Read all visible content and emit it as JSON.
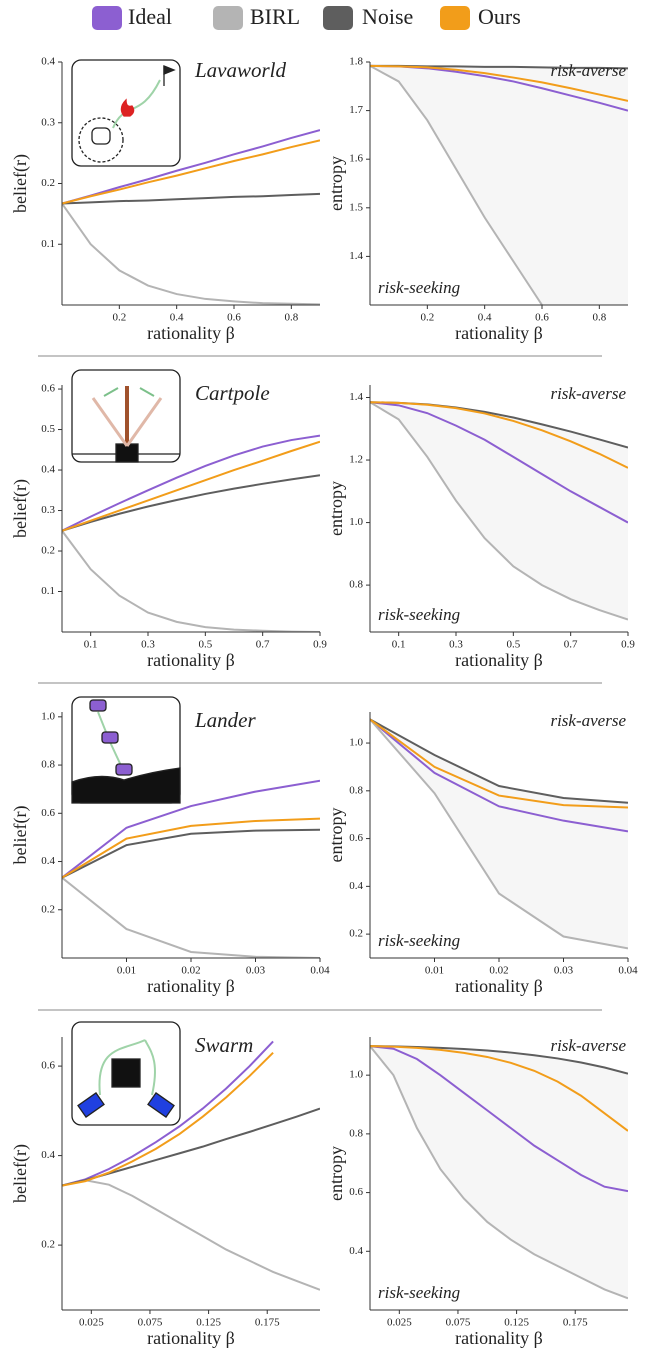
{
  "legend": [
    {
      "name": "Ideal",
      "color": "#8c5fd1"
    },
    {
      "name": "BIRL",
      "color": "#b4b4b4"
    },
    {
      "name": "Noise",
      "color": "#5e5e5e"
    },
    {
      "name": "Ours",
      "color": "#f29d1a"
    }
  ],
  "chart_data": [
    {
      "type": "line",
      "title": "Lavaworld",
      "xlabel": "rationality β",
      "ylabel": "belief(r)",
      "x": [
        0,
        0.1,
        0.2,
        0.3,
        0.4,
        0.5,
        0.6,
        0.7,
        0.8,
        0.9
      ],
      "xlim": [
        0,
        0.9
      ],
      "xticks": [
        0.2,
        0.4,
        0.6,
        0.8
      ],
      "ylim": [
        0,
        0.4
      ],
      "yticks": [
        0.1,
        0.2,
        0.3,
        0.4
      ],
      "series": [
        {
          "values": [
            0.167,
            0.18,
            0.194,
            0.207,
            0.221,
            0.234,
            0.248,
            0.261,
            0.275,
            0.288
          ]
        },
        {
          "values": [
            0.167,
            0.1,
            0.057,
            0.032,
            0.018,
            0.01,
            0.006,
            0.003,
            0.002,
            0.001
          ]
        },
        {
          "values": [
            0.167,
            0.169,
            0.171,
            0.172,
            0.174,
            0.176,
            0.178,
            0.179,
            0.181,
            0.183
          ]
        },
        {
          "values": [
            0.167,
            0.179,
            0.19,
            0.202,
            0.213,
            0.225,
            0.237,
            0.248,
            0.26,
            0.271
          ]
        }
      ]
    },
    {
      "type": "line",
      "annotations": [
        "risk-averse",
        "risk-seeking"
      ],
      "shade": true,
      "xlabel": "rationality β",
      "ylabel": "entropy",
      "x": [
        0,
        0.1,
        0.2,
        0.3,
        0.4,
        0.5,
        0.6,
        0.7,
        0.8,
        0.9
      ],
      "xlim": [
        0,
        0.9
      ],
      "xticks": [
        0.2,
        0.4,
        0.6,
        0.8
      ],
      "ylim": [
        1.3,
        1.8
      ],
      "yticks": [
        1.4,
        1.5,
        1.6,
        1.7,
        1.8
      ],
      "series": [
        {
          "values": [
            1.792,
            1.791,
            1.787,
            1.78,
            1.771,
            1.76,
            1.746,
            1.731,
            1.716,
            1.7
          ]
        },
        {
          "values": [
            1.792,
            1.76,
            1.68,
            1.58,
            1.48,
            1.39,
            1.3,
            null,
            null,
            null
          ]
        },
        {
          "values": [
            1.792,
            1.792,
            1.791,
            1.791,
            1.79,
            1.79,
            1.789,
            1.788,
            1.788,
            1.787
          ]
        },
        {
          "values": [
            1.792,
            1.791,
            1.789,
            1.784,
            1.777,
            1.768,
            1.758,
            1.746,
            1.733,
            1.72
          ]
        }
      ]
    },
    {
      "type": "line",
      "title": "Cartpole",
      "xlabel": "rationality β",
      "ylabel": "belief(r)",
      "x": [
        0,
        0.1,
        0.2,
        0.3,
        0.4,
        0.5,
        0.6,
        0.7,
        0.8,
        0.9
      ],
      "xlim": [
        0,
        0.9
      ],
      "xticks": [
        0.1,
        0.3,
        0.5,
        0.7,
        0.9
      ],
      "ylim": [
        0,
        0.61
      ],
      "yticks": [
        0.1,
        0.2,
        0.3,
        0.4,
        0.5,
        0.6
      ],
      "series": [
        {
          "values": [
            0.25,
            0.285,
            0.318,
            0.35,
            0.381,
            0.41,
            0.436,
            0.458,
            0.474,
            0.485
          ]
        },
        {
          "values": [
            0.25,
            0.155,
            0.09,
            0.048,
            0.025,
            0.012,
            0.006,
            0.003,
            0.001,
            0.0
          ]
        },
        {
          "values": [
            0.25,
            0.272,
            0.292,
            0.31,
            0.326,
            0.341,
            0.354,
            0.366,
            0.377,
            0.387
          ]
        },
        {
          "values": [
            0.25,
            0.275,
            0.3,
            0.325,
            0.35,
            0.375,
            0.4,
            0.423,
            0.447,
            0.47
          ]
        }
      ]
    },
    {
      "type": "line",
      "annotations": [
        "risk-averse",
        "risk-seeking"
      ],
      "shade": true,
      "xlabel": "rationality β",
      "ylabel": "entropy",
      "x": [
        0,
        0.1,
        0.2,
        0.3,
        0.4,
        0.5,
        0.6,
        0.7,
        0.8,
        0.9
      ],
      "xlim": [
        0,
        0.9
      ],
      "xticks": [
        0.1,
        0.3,
        0.5,
        0.7,
        0.9
      ],
      "ylim": [
        0.65,
        1.44
      ],
      "yticks": [
        0.8,
        {
          "value": 1,
          "label": "1.0"
        },
        1.2,
        1.4
      ],
      "series": [
        {
          "values": [
            1.385,
            1.375,
            1.35,
            1.31,
            1.265,
            1.21,
            1.155,
            1.1,
            1.05,
            1.0
          ]
        },
        {
          "values": [
            1.385,
            1.33,
            1.21,
            1.07,
            0.95,
            0.86,
            0.8,
            0.755,
            0.72,
            0.69
          ]
        },
        {
          "values": [
            1.385,
            1.383,
            1.378,
            1.368,
            1.354,
            1.336,
            1.314,
            1.291,
            1.266,
            1.24
          ]
        },
        {
          "values": [
            1.385,
            1.383,
            1.377,
            1.366,
            1.349,
            1.325,
            1.295,
            1.26,
            1.22,
            1.175
          ]
        }
      ]
    },
    {
      "type": "line",
      "title": "Lander",
      "xlabel": "rationality β",
      "ylabel": "belief(r)",
      "x": [
        0,
        0.01,
        0.02,
        0.03,
        0.04
      ],
      "xlim": [
        0,
        0.04
      ],
      "xticks": [
        0.01,
        0.02,
        0.03,
        0.04
      ],
      "ylim": [
        0,
        1.02
      ],
      "yticks": [
        0.2,
        0.4,
        0.6,
        0.8,
        {
          "value": 1,
          "label": "1.0"
        }
      ],
      "series": [
        {
          "values": [
            0.333,
            0.54,
            0.63,
            0.69,
            0.735
          ]
        },
        {
          "values": [
            0.333,
            0.12,
            0.025,
            0.005,
            0.0
          ]
        },
        {
          "values": [
            0.333,
            0.468,
            0.515,
            0.528,
            0.532
          ]
        },
        {
          "values": [
            0.333,
            0.495,
            0.548,
            0.568,
            0.578
          ]
        }
      ]
    },
    {
      "type": "line",
      "annotations": [
        "risk-averse",
        "risk-seeking"
      ],
      "shade": true,
      "xlabel": "rationality β",
      "ylabel": "entropy",
      "x": [
        0,
        0.01,
        0.02,
        0.03,
        0.04
      ],
      "xlim": [
        0,
        0.04
      ],
      "xticks": [
        0.01,
        0.02,
        0.03,
        0.04
      ],
      "ylim": [
        0.1,
        1.13
      ],
      "yticks": [
        0.2,
        0.4,
        0.6,
        0.8,
        {
          "value": 1,
          "label": "1.0"
        }
      ],
      "series": [
        {
          "values": [
            1.099,
            0.875,
            0.735,
            0.675,
            0.63
          ]
        },
        {
          "values": [
            1.099,
            0.79,
            0.37,
            0.19,
            0.14
          ]
        },
        {
          "values": [
            1.099,
            0.95,
            0.82,
            0.77,
            0.75
          ]
        },
        {
          "values": [
            1.099,
            0.9,
            0.78,
            0.74,
            0.73
          ]
        }
      ]
    },
    {
      "type": "line",
      "title": "Swarm",
      "xlabel": "rationality β",
      "ylabel": "belief(r)",
      "x": [
        0,
        0.02,
        0.04,
        0.06,
        0.08,
        0.1,
        0.12,
        0.14,
        0.16,
        0.18,
        0.2,
        0.22
      ],
      "xlim": [
        0,
        0.22
      ],
      "xticks": [
        0.025,
        0.075,
        0.125,
        0.175
      ],
      "ylim": [
        0.055,
        0.665
      ],
      "yticks": [
        0.2,
        0.4,
        0.6
      ],
      "series": [
        {
          "values": [
            0.333,
            0.347,
            0.37,
            0.398,
            0.43,
            0.465,
            0.505,
            0.55,
            0.6,
            0.655,
            null,
            null
          ]
        },
        {
          "values": [
            0.333,
            0.345,
            0.335,
            0.31,
            0.28,
            0.25,
            0.22,
            0.19,
            0.165,
            0.14,
            0.12,
            0.1
          ]
        },
        {
          "values": [
            0.333,
            0.345,
            0.36,
            0.375,
            0.39,
            0.405,
            0.42,
            0.437,
            0.453,
            0.47,
            0.487,
            0.505
          ]
        },
        {
          "values": [
            0.333,
            0.343,
            0.362,
            0.387,
            0.415,
            0.448,
            0.487,
            0.53,
            0.578,
            0.63,
            null,
            null
          ]
        }
      ]
    },
    {
      "type": "line",
      "annotations": [
        "risk-averse",
        "risk-seeking"
      ],
      "shade": true,
      "xlabel": "rationality β",
      "ylabel": "entropy",
      "x": [
        0,
        0.02,
        0.04,
        0.06,
        0.08,
        0.1,
        0.12,
        0.14,
        0.16,
        0.18,
        0.2,
        0.22
      ],
      "xlim": [
        0,
        0.22
      ],
      "xticks": [
        0.025,
        0.075,
        0.125,
        0.175
      ],
      "ylim": [
        0.2,
        1.13
      ],
      "yticks": [
        0.4,
        0.6,
        0.8,
        {
          "value": 1,
          "label": "1.0"
        }
      ],
      "series": [
        {
          "values": [
            1.099,
            1.09,
            1.055,
            1.0,
            0.94,
            0.88,
            0.82,
            0.76,
            0.71,
            0.66,
            0.62,
            0.605
          ]
        },
        {
          "values": [
            1.099,
            1.0,
            0.82,
            0.68,
            0.58,
            0.5,
            0.44,
            0.39,
            0.35,
            0.31,
            0.27,
            0.24
          ]
        },
        {
          "values": [
            1.099,
            1.098,
            1.096,
            1.093,
            1.089,
            1.084,
            1.077,
            1.068,
            1.057,
            1.043,
            1.026,
            1.005
          ]
        },
        {
          "values": [
            1.099,
            1.097,
            1.093,
            1.086,
            1.076,
            1.062,
            1.042,
            1.015,
            0.978,
            0.93,
            0.87,
            0.81
          ]
        }
      ]
    }
  ]
}
